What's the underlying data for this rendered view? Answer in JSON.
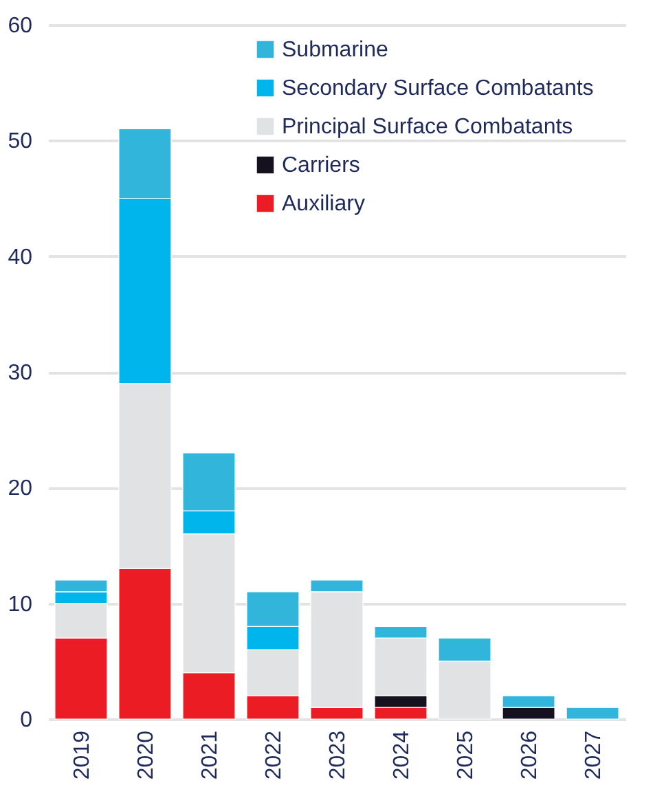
{
  "chart_data": {
    "type": "bar",
    "stacked": true,
    "categories": [
      "2019",
      "2020",
      "2021",
      "2022",
      "2023",
      "2024",
      "2025",
      "2026",
      "2027"
    ],
    "series": [
      {
        "name": "Auxiliary",
        "color": "#ec1c24",
        "values": [
          7,
          13,
          4,
          2,
          1,
          1,
          0,
          0,
          0
        ]
      },
      {
        "name": "Carriers",
        "color": "#16111e",
        "values": [
          0,
          0,
          0,
          0,
          0,
          1,
          0,
          1,
          0
        ]
      },
      {
        "name": "Principal Surface Combatants",
        "color": "#e1e2e4",
        "values": [
          3,
          16,
          12,
          4,
          10,
          5,
          5,
          0,
          0
        ]
      },
      {
        "name": "Secondary Surface Combatants",
        "color": "#00b4ec",
        "values": [
          1,
          16,
          2,
          2,
          0,
          0,
          0,
          0,
          0
        ]
      },
      {
        "name": "Submarine",
        "color": "#31b5da",
        "values": [
          1,
          6,
          5,
          3,
          1,
          1,
          2,
          1,
          1
        ]
      }
    ],
    "ylim": [
      0,
      60
    ],
    "yticks": [
      0,
      10,
      20,
      30,
      40,
      50,
      60
    ],
    "grid": "y",
    "legend": "top right"
  }
}
